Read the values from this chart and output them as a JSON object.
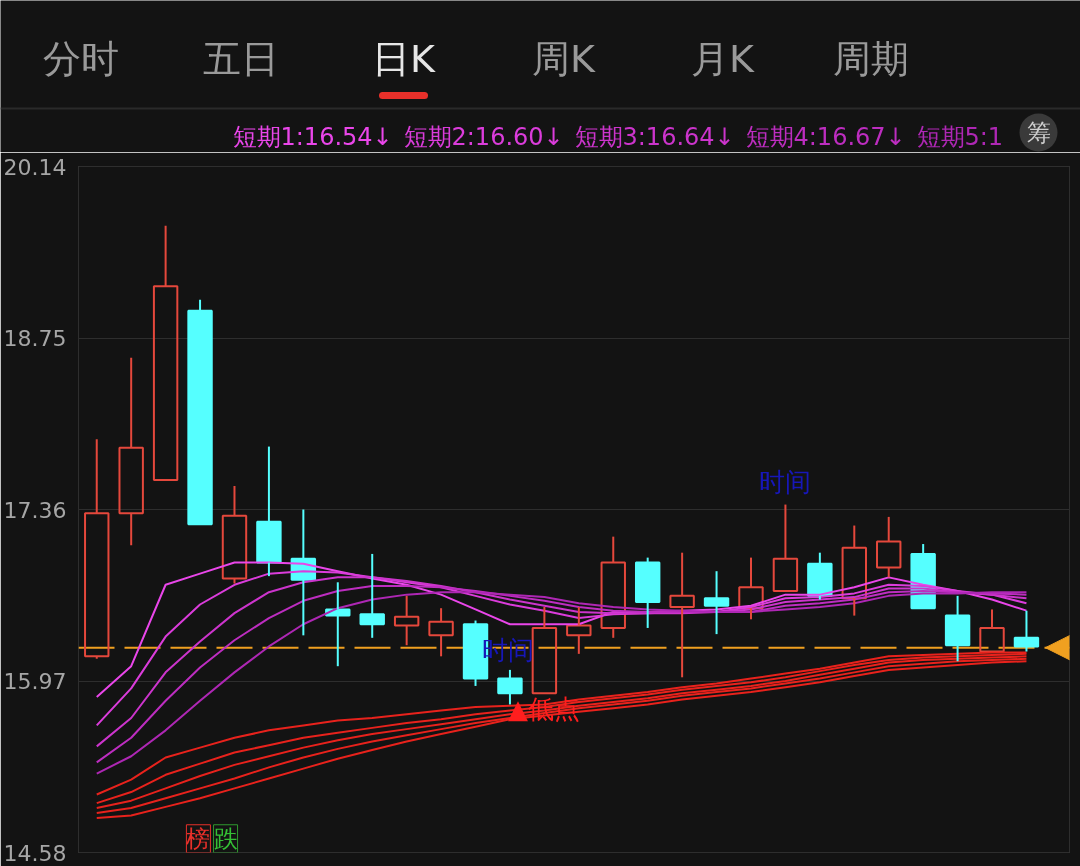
{
  "chart_data": {
    "type": "candlestick",
    "categories": [
      null,
      null,
      null,
      null,
      null,
      null,
      null,
      null,
      null,
      null,
      null,
      null,
      null,
      null,
      null,
      null,
      null,
      null,
      null,
      null,
      null,
      null,
      null,
      null,
      null,
      null,
      null,
      null
    ],
    "ohlc": [
      [
        16.17,
        17.93,
        16.15,
        17.33
      ],
      [
        17.33,
        18.59,
        17.07,
        17.86
      ],
      [
        17.6,
        19.66,
        17.6,
        19.17
      ],
      [
        18.97,
        19.06,
        17.24,
        17.24
      ],
      [
        16.8,
        17.55,
        16.76,
        17.31
      ],
      [
        17.26,
        17.87,
        16.82,
        16.93
      ],
      [
        16.96,
        17.36,
        16.34,
        16.79
      ],
      [
        16.55,
        16.77,
        16.09,
        16.5
      ],
      [
        16.51,
        17.0,
        16.32,
        16.43
      ],
      [
        16.42,
        16.66,
        16.26,
        16.49
      ],
      [
        16.34,
        16.56,
        16.17,
        16.45
      ],
      [
        16.43,
        16.46,
        15.93,
        15.99
      ],
      [
        15.99,
        16.06,
        15.78,
        15.87
      ],
      [
        15.87,
        16.57,
        15.87,
        16.4
      ],
      [
        16.34,
        16.57,
        16.19,
        16.42
      ],
      [
        16.4,
        17.14,
        16.32,
        16.93
      ],
      [
        16.93,
        16.97,
        16.4,
        16.61
      ],
      [
        16.57,
        17.01,
        16.0,
        16.66
      ],
      [
        16.64,
        16.86,
        16.35,
        16.58
      ],
      [
        16.56,
        16.97,
        16.47,
        16.73
      ],
      [
        16.7,
        17.4,
        16.7,
        16.96
      ],
      [
        16.92,
        17.01,
        16.63,
        16.66
      ],
      [
        16.64,
        17.23,
        16.5,
        17.05
      ],
      [
        16.89,
        17.3,
        16.81,
        17.1
      ],
      [
        17.0,
        17.08,
        16.56,
        16.56
      ],
      [
        16.5,
        16.66,
        16.13,
        16.26
      ],
      [
        16.21,
        16.55,
        16.21,
        16.4
      ],
      [
        16.32,
        16.54,
        16.21,
        16.25
      ]
    ],
    "colors": [
      "#e5483c",
      "#e5483c",
      "#e5483c",
      "#55ffff",
      "#e5483c",
      "#55ffff",
      "#55ffff",
      "#55ffff",
      "#55ffff",
      "#e5483c",
      "#e5483c",
      "#55ffff",
      "#55ffff",
      "#e5483c",
      "#e5483c",
      "#e5483c",
      "#55ffff",
      "#e5483c",
      "#55ffff",
      "#e5483c",
      "#e5483c",
      "#55ffff",
      "#e5483c",
      "#e5483c",
      "#55ffff",
      "#55ffff",
      "#e5483c",
      "#55ffff"
    ],
    "series": [
      {
        "name": "短期1:16.54↓",
        "type": "line",
        "color": "#ea46ea",
        "values": [
          15.84,
          16.09,
          16.75,
          16.84,
          16.93,
          16.93,
          16.92,
          16.86,
          16.8,
          16.75,
          16.67,
          16.55,
          16.43,
          16.43,
          16.43,
          16.53,
          16.53,
          16.54,
          16.55,
          16.58,
          16.67,
          16.67,
          16.73,
          16.81,
          16.75,
          16.7,
          16.63,
          16.54
        ]
      },
      {
        "name": "短期2:16.60↓",
        "type": "line",
        "color": "#db3cdb",
        "values": [
          15.61,
          15.91,
          16.33,
          16.59,
          16.75,
          16.84,
          16.86,
          16.85,
          16.81,
          16.77,
          16.73,
          16.66,
          16.59,
          16.54,
          16.48,
          16.51,
          16.52,
          16.53,
          16.53,
          16.57,
          16.64,
          16.65,
          16.68,
          16.75,
          16.74,
          16.7,
          16.67,
          16.6
        ]
      },
      {
        "name": "短期3:16.64↓",
        "type": "line",
        "color": "#cc34cc",
        "values": [
          15.44,
          15.67,
          16.04,
          16.29,
          16.52,
          16.69,
          16.77,
          16.81,
          16.81,
          16.78,
          16.74,
          16.69,
          16.63,
          16.58,
          16.53,
          16.52,
          16.52,
          16.52,
          16.53,
          16.55,
          16.61,
          16.63,
          16.65,
          16.72,
          16.72,
          16.69,
          16.67,
          16.64
        ]
      },
      {
        "name": "短期4:16.67↓",
        "type": "line",
        "color": "#bd2dc0",
        "values": [
          15.31,
          15.51,
          15.81,
          16.08,
          16.3,
          16.48,
          16.62,
          16.7,
          16.74,
          16.74,
          16.73,
          16.7,
          16.66,
          16.62,
          16.57,
          16.54,
          16.53,
          16.53,
          16.53,
          16.53,
          16.58,
          16.6,
          16.63,
          16.69,
          16.7,
          16.69,
          16.68,
          16.67
        ]
      },
      {
        "name": "短期5:1",
        "type": "line",
        "color": "#ae27b4",
        "values": [
          15.22,
          15.36,
          15.57,
          15.81,
          16.04,
          16.25,
          16.43,
          16.56,
          16.63,
          16.67,
          16.69,
          16.69,
          16.67,
          16.65,
          16.6,
          16.57,
          16.55,
          16.54,
          16.53,
          16.53,
          16.55,
          16.57,
          16.6,
          16.66,
          16.68,
          16.68,
          16.69,
          16.69
        ]
      },
      {
        "type": "line",
        "color": "#e8221c",
        "values": [
          15.05,
          15.17,
          15.35,
          15.43,
          15.51,
          15.57,
          15.61,
          15.65,
          15.67,
          15.7,
          15.73,
          15.76,
          15.77,
          15.78,
          15.82,
          15.85,
          15.88,
          15.92,
          15.95,
          15.99,
          16.03,
          16.07,
          16.12,
          16.17,
          16.18,
          16.19,
          16.2,
          16.2
        ]
      },
      {
        "type": "line",
        "color": "#e8221c",
        "values": [
          14.98,
          15.07,
          15.21,
          15.3,
          15.39,
          15.45,
          15.51,
          15.55,
          15.59,
          15.63,
          15.66,
          15.7,
          15.73,
          15.76,
          15.8,
          15.83,
          15.86,
          15.9,
          15.93,
          15.96,
          16.0,
          16.05,
          16.1,
          16.14,
          16.16,
          16.17,
          16.18,
          16.19
        ]
      },
      {
        "type": "line",
        "color": "#e8221c",
        "values": [
          14.94,
          15.0,
          15.1,
          15.2,
          15.29,
          15.36,
          15.43,
          15.49,
          15.54,
          15.58,
          15.62,
          15.66,
          15.7,
          15.73,
          15.77,
          15.8,
          15.83,
          15.87,
          15.9,
          15.93,
          15.97,
          16.02,
          16.07,
          16.12,
          16.14,
          16.15,
          16.16,
          16.17
        ]
      },
      {
        "type": "line",
        "color": "#e8221c",
        "values": [
          14.9,
          14.94,
          15.02,
          15.1,
          15.18,
          15.27,
          15.35,
          15.42,
          15.48,
          15.53,
          15.58,
          15.63,
          15.67,
          15.71,
          15.75,
          15.78,
          15.81,
          15.85,
          15.88,
          15.91,
          15.95,
          15.99,
          16.04,
          16.09,
          16.11,
          16.13,
          16.14,
          16.15
        ]
      },
      {
        "type": "line",
        "color": "#e8221c",
        "values": [
          14.86,
          14.88,
          14.95,
          15.02,
          15.1,
          15.18,
          15.26,
          15.34,
          15.41,
          15.48,
          15.54,
          15.6,
          15.66,
          15.69,
          15.72,
          15.75,
          15.78,
          15.82,
          15.85,
          15.88,
          15.92,
          15.96,
          16.01,
          16.06,
          16.08,
          16.1,
          16.12,
          16.13
        ]
      }
    ],
    "ylim": [
      14.58,
      20.14
    ],
    "yticks": [
      20.14,
      18.75,
      17.36,
      15.97,
      14.58
    ],
    "grid": "y",
    "tick_labels": "y",
    "legend": "top",
    "ref_lines": [
      {
        "axis": "y",
        "value": 16.24,
        "color": "#f0a020",
        "line_style": "dashed"
      }
    ],
    "annotations": [
      "分时",
      "五日",
      "日K",
      "周K",
      "月K",
      "周期",
      "筹",
      "时间",
      "时间",
      "▲低点",
      "榜",
      "跌"
    ]
  }
}
